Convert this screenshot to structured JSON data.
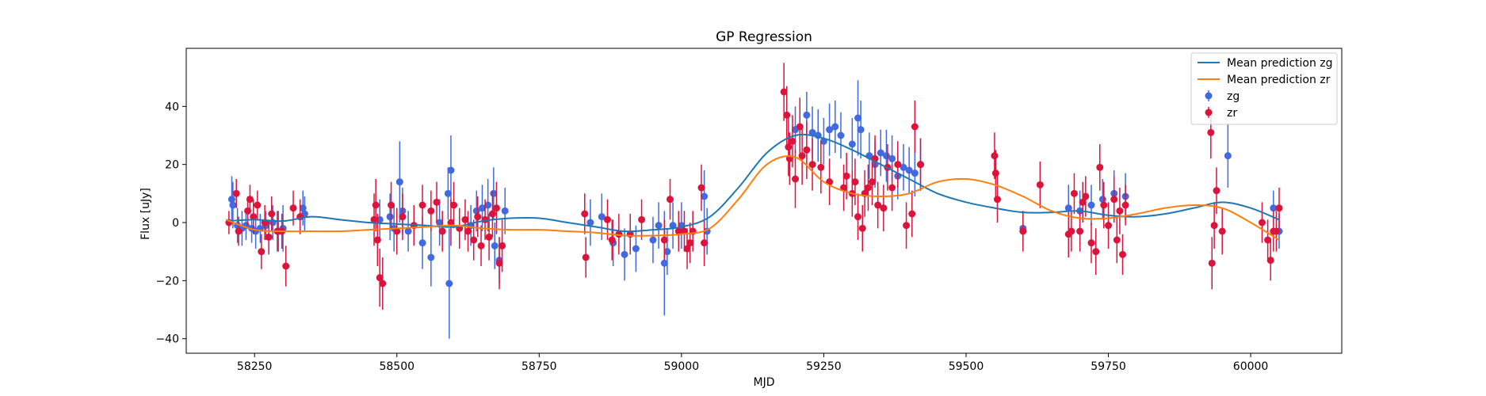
{
  "chart_data": {
    "type": "scatter",
    "title": "GP Regression",
    "xlabel": "MJD",
    "ylabel": "Flux [uJy]",
    "xlim": [
      58130,
      60160
    ],
    "ylim": [
      -45,
      60
    ],
    "xticks": [
      58250,
      58500,
      58750,
      59000,
      59250,
      59500,
      59750,
      60000
    ],
    "yticks": [
      -40,
      -20,
      0,
      20,
      40
    ],
    "legend_position": "top-right",
    "series": [
      {
        "name": "Mean prediction zg",
        "kind": "line",
        "color": "#1f77b4",
        "x": [
          58200,
          58250,
          58300,
          58350,
          58400,
          58450,
          58500,
          58550,
          58600,
          58650,
          58700,
          58750,
          58800,
          58850,
          58900,
          58950,
          59000,
          59050,
          59100,
          59150,
          59200,
          59250,
          59300,
          59350,
          59400,
          59450,
          59500,
          59550,
          59600,
          59650,
          59700,
          59750,
          59800,
          59850,
          59900,
          59950,
          60000,
          60050
        ],
        "y": [
          0.5,
          1.0,
          0.5,
          2.0,
          1.0,
          0.0,
          -0.5,
          -1.0,
          -1.5,
          0.5,
          1.5,
          1.5,
          0.0,
          -1.5,
          -3.0,
          -2.5,
          -1.5,
          2.0,
          12.0,
          24.0,
          30.0,
          29.0,
          25.0,
          20.0,
          15.0,
          10.0,
          7.0,
          5.0,
          3.5,
          3.5,
          4.0,
          2.5,
          2.0,
          3.0,
          5.0,
          7.0,
          5.0,
          1.0
        ]
      },
      {
        "name": "Mean prediction zr",
        "kind": "line",
        "color": "#ff7f0e",
        "x": [
          58200,
          58250,
          58300,
          58350,
          58400,
          58450,
          58500,
          58550,
          58600,
          58650,
          58700,
          58750,
          58800,
          58850,
          58900,
          58950,
          59000,
          59050,
          59100,
          59150,
          59200,
          59250,
          59300,
          59350,
          59400,
          59450,
          59500,
          59550,
          59600,
          59650,
          59700,
          59750,
          59800,
          59850,
          59900,
          59950,
          60000,
          60050
        ],
        "y": [
          1.0,
          -2.5,
          -3.0,
          -3.0,
          -3.0,
          -2.5,
          -2.0,
          -1.5,
          -1.0,
          -2.0,
          -2.5,
          -2.5,
          -3.0,
          -3.5,
          -4.5,
          -4.5,
          -4.0,
          -2.0,
          8.0,
          20.0,
          22.5,
          14.0,
          10.0,
          9.0,
          10.0,
          14.0,
          15.0,
          13.0,
          9.0,
          4.0,
          1.5,
          1.5,
          3.0,
          5.0,
          6.0,
          5.0,
          0.0,
          -6.0
        ]
      },
      {
        "name": "zg",
        "kind": "errorbar",
        "color": "#4169e1",
        "x": [
          58210,
          58212,
          58220,
          58228,
          58235,
          58245,
          58252,
          58260,
          58270,
          58282,
          58292,
          58300,
          58335,
          58338,
          58470,
          58488,
          58495,
          58505,
          58510,
          58520,
          58545,
          58560,
          58575,
          58590,
          58592,
          58595,
          58630,
          58640,
          58650,
          58660,
          58670,
          58672,
          58680,
          58690,
          58840,
          58860,
          58880,
          58900,
          58920,
          58950,
          58960,
          58970,
          58975,
          58985,
          59000,
          59040,
          59045,
          59200,
          59220,
          59230,
          59240,
          59250,
          59260,
          59270,
          59280,
          59300,
          59310,
          59315,
          59330,
          59340,
          59350,
          59360,
          59370,
          59380,
          59390,
          59400,
          59410,
          59420,
          59600,
          59680,
          59700,
          59720,
          59740,
          59760,
          59780,
          59960,
          60040,
          60050
        ],
        "y": [
          8,
          6,
          -1,
          -2,
          -1,
          -2,
          -3,
          -2,
          -1,
          0,
          -3,
          -2,
          5,
          3,
          1,
          2,
          -2,
          14,
          4,
          -3,
          -7,
          -12,
          0,
          10,
          -21,
          18,
          -1,
          4,
          5,
          6,
          10,
          -8,
          -13,
          4,
          0,
          2,
          -7,
          -11,
          -9,
          -6,
          -1,
          -14,
          -10,
          -1,
          -1,
          9,
          -3,
          32,
          37,
          31,
          30,
          28,
          32,
          33,
          30,
          27,
          36,
          32,
          23,
          20,
          24,
          23,
          22,
          16,
          19,
          18,
          17,
          20,
          -2,
          5,
          4,
          6,
          8,
          10,
          9,
          23,
          5,
          -3
        ],
        "err": [
          8,
          8,
          6,
          6,
          5,
          5,
          6,
          5,
          5,
          6,
          7,
          8,
          6,
          6,
          7,
          8,
          8,
          14,
          8,
          7,
          9,
          10,
          8,
          9,
          19,
          12,
          7,
          7,
          8,
          9,
          9,
          8,
          8,
          8,
          8,
          8,
          8,
          9,
          8,
          8,
          8,
          18,
          8,
          8,
          8,
          9,
          8,
          8,
          8,
          9,
          9,
          8,
          9,
          9,
          8,
          9,
          13,
          10,
          8,
          8,
          8,
          9,
          8,
          8,
          8,
          8,
          8,
          9,
          6,
          8,
          7,
          7,
          7,
          8,
          8,
          11,
          6,
          6
        ]
      },
      {
        "name": "zr",
        "kind": "errorbar",
        "color": "#dc143c",
        "x": [
          58205,
          58218,
          58222,
          58238,
          58242,
          58248,
          58255,
          58262,
          58268,
          58275,
          58280,
          58290,
          58298,
          58305,
          58318,
          58330,
          58460,
          58463,
          58466,
          58470,
          58475,
          58490,
          58500,
          58510,
          58530,
          58545,
          58560,
          58570,
          58580,
          58595,
          58600,
          58610,
          58620,
          58625,
          58635,
          58642,
          58648,
          58655,
          58662,
          58668,
          58675,
          58680,
          58685,
          58830,
          58832,
          58870,
          58878,
          58890,
          58910,
          58930,
          58970,
          58980,
          58995,
          59005,
          59010,
          59015,
          59020,
          59035,
          59040,
          59180,
          59185,
          59188,
          59190,
          59195,
          59200,
          59208,
          59212,
          59220,
          59230,
          59245,
          59260,
          59285,
          59290,
          59300,
          59305,
          59310,
          59318,
          59322,
          59328,
          59335,
          59340,
          59345,
          59355,
          59362,
          59370,
          59380,
          59395,
          59405,
          59410,
          59420,
          59550,
          59552,
          59555,
          59600,
          59630,
          59680,
          59685,
          59690,
          59700,
          59705,
          59710,
          59720,
          59728,
          59735,
          59742,
          59750,
          59760,
          59765,
          59770,
          59775,
          59780,
          59930,
          59932,
          59936,
          59940,
          59950,
          60020,
          60030,
          60035,
          60040,
          60045,
          60050
        ],
        "y": [
          0,
          10,
          -3,
          4,
          8,
          2,
          6,
          -10,
          0,
          -5,
          3,
          -3,
          -3,
          -15,
          5,
          2,
          1,
          6,
          -6,
          -19,
          -21,
          6,
          -3,
          2,
          -1,
          6,
          4,
          7,
          -3,
          0,
          6,
          -2,
          1,
          -3,
          -6,
          2,
          -8,
          1,
          -5,
          3,
          5,
          -14,
          -8,
          3,
          -12,
          1,
          -6,
          -4,
          -4,
          1,
          -6,
          8,
          -3,
          -3,
          -9,
          -7,
          -3,
          12,
          -7,
          45,
          37,
          26,
          22,
          28,
          15,
          33,
          23,
          25,
          20,
          19,
          14,
          12,
          16,
          10,
          14,
          2,
          -2,
          10,
          12,
          14,
          22,
          6,
          5,
          19,
          12,
          20,
          -1,
          3,
          33,
          20,
          23,
          17,
          8,
          -3,
          13,
          -4,
          -3,
          10,
          -3,
          7,
          9,
          -7,
          -10,
          19,
          6,
          -1,
          8,
          -6,
          4,
          -11,
          6,
          31,
          -14,
          -1,
          11,
          -3,
          0,
          -6,
          -13,
          -3,
          -3,
          5
        ],
        "err": [
          4,
          5,
          5,
          5,
          5,
          6,
          5,
          6,
          6,
          6,
          6,
          7,
          6,
          7,
          6,
          6,
          9,
          9,
          9,
          10,
          9,
          8,
          8,
          8,
          7,
          7,
          7,
          7,
          7,
          8,
          8,
          7,
          7,
          7,
          7,
          7,
          7,
          7,
          8,
          8,
          9,
          9,
          9,
          7,
          7,
          7,
          7,
          7,
          7,
          7,
          7,
          7,
          7,
          7,
          7,
          7,
          7,
          8,
          8,
          10,
          10,
          10,
          9,
          9,
          10,
          10,
          10,
          10,
          9,
          9,
          8,
          8,
          8,
          8,
          8,
          8,
          8,
          8,
          8,
          8,
          8,
          8,
          8,
          8,
          8,
          8,
          8,
          8,
          9,
          9,
          8,
          8,
          8,
          7,
          8,
          8,
          7,
          7,
          7,
          7,
          7,
          7,
          8,
          8,
          8,
          8,
          8,
          8,
          8,
          7,
          7,
          9,
          9,
          8,
          8,
          8,
          7,
          7,
          7,
          7,
          7,
          7
        ]
      }
    ]
  }
}
